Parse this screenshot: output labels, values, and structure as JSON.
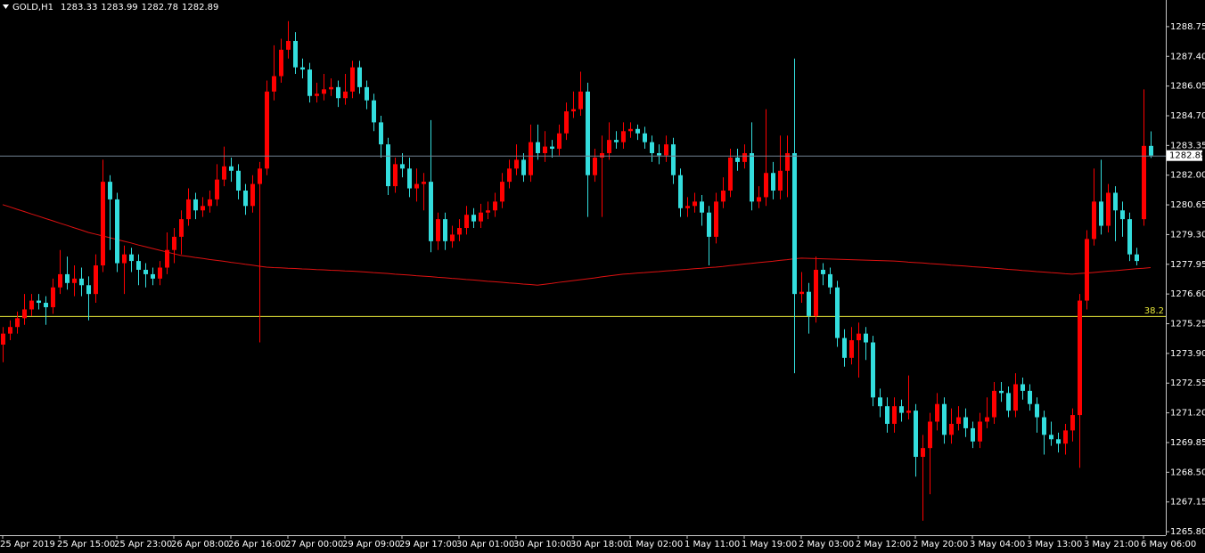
{
  "chart_data": {
    "type": "candlestick",
    "symbol": "GOLD,H1",
    "up_color": "#ff0000",
    "down_color": "#33dddd",
    "categories": [
      "25 Apr 2019",
      null,
      null,
      null,
      null,
      null,
      null,
      null,
      "25 Apr 15:00",
      null,
      null,
      null,
      null,
      null,
      null,
      null,
      "25 Apr 23:00",
      null,
      null,
      null,
      null,
      null,
      null,
      null,
      "26 Apr 08:00",
      null,
      null,
      null,
      null,
      null,
      null,
      null,
      "26 Apr 16:00",
      null,
      null,
      null,
      null,
      null,
      null,
      null,
      "27 Apr 00:00",
      null,
      null,
      null,
      null,
      null,
      null,
      null,
      "29 Apr 09:00",
      null,
      null,
      null,
      null,
      null,
      null,
      null,
      "29 Apr 17:00",
      null,
      null,
      null,
      null,
      null,
      null,
      null,
      "30 Apr 01:00",
      null,
      null,
      null,
      null,
      null,
      null,
      null,
      "30 Apr 10:00",
      null,
      null,
      null,
      null,
      null,
      null,
      null,
      "30 Apr 18:00",
      null,
      null,
      null,
      null,
      null,
      null,
      null,
      "1 May 02:00",
      null,
      null,
      null,
      null,
      null,
      null,
      null,
      "1 May 11:00",
      null,
      null,
      null,
      null,
      null,
      null,
      null,
      "1 May 19:00",
      null,
      null,
      null,
      null,
      null,
      null,
      null,
      "2 May 03:00",
      null,
      null,
      null,
      null,
      null,
      null,
      null,
      "2 May 12:00",
      null,
      null,
      null,
      null,
      null,
      null,
      null,
      "2 May 20:00",
      null,
      null,
      null,
      null,
      null,
      null,
      null,
      "3 May 04:00",
      null,
      null,
      null,
      null,
      null,
      null,
      null,
      "3 May 13:00",
      null,
      null,
      null,
      null,
      null,
      null,
      null,
      "3 May 21:00",
      null,
      null,
      null,
      null,
      null,
      null,
      null,
      "6 May 06:00",
      null
    ],
    "open": [
      1274.3,
      1274.8,
      1275.1,
      1275.5,
      1275.9,
      1276.3,
      1276.2,
      1276.0,
      1276.9,
      1277.5,
      1277.1,
      1277.3,
      1277.0,
      1276.6,
      1277.9,
      1281.7,
      1280.9,
      1278.0,
      1278.4,
      1278.1,
      1277.7,
      1277.5,
      1277.3,
      1277.8,
      1278.6,
      1279.2,
      1280.0,
      1280.9,
      1280.4,
      1280.6,
      1280.9,
      1281.8,
      1282.4,
      1282.2,
      1281.3,
      1280.6,
      1281.6,
      1282.3,
      1285.8,
      1286.5,
      1287.7,
      1288.1,
      1286.9,
      1286.8,
      1285.6,
      1285.7,
      1285.9,
      1286.0,
      1285.5,
      1285.8,
      1286.9,
      1286.0,
      1285.4,
      1284.4,
      1283.4,
      1281.5,
      1282.5,
      1282.3,
      1281.4,
      1281.6,
      1281.7,
      1279.0,
      1280.0,
      1279.0,
      1279.3,
      1279.6,
      1280.2,
      1279.9,
      1280.3,
      1280.4,
      1280.8,
      1281.7,
      1282.3,
      1282.7,
      1282.0,
      1283.5,
      1283.0,
      1283.3,
      1283.2,
      1283.9,
      1284.9,
      1285.0,
      1285.8,
      1282.0,
      1282.8,
      1283.0,
      1283.6,
      1283.5,
      1284.0,
      1284.1,
      1283.9,
      1283.5,
      1283.0,
      1282.9,
      1283.4,
      1282.0,
      1280.5,
      1280.6,
      1280.8,
      1280.3,
      1279.2,
      1280.8,
      1281.3,
      1282.8,
      1282.6,
      1283.0,
      1280.8,
      1281.0,
      1282.1,
      1281.3,
      1282.2,
      1283.0,
      1276.6,
      1276.7,
      1275.6,
      1277.7,
      1277.5,
      1276.9,
      1274.6,
      1273.7,
      1274.5,
      1274.8,
      1274.4,
      1271.9,
      1271.5,
      1270.7,
      1271.5,
      1271.2,
      1271.3,
      1269.2,
      1269.6,
      1270.8,
      1271.6,
      1270.2,
      1270.7,
      1271.0,
      1270.5,
      1269.9,
      1270.8,
      1271.0,
      1272.2,
      1272.1,
      1271.3,
      1272.5,
      1272.2,
      1271.6,
      1271.0,
      1270.2,
      1270.0,
      1269.8,
      1270.4,
      1271.1,
      1276.3,
      1279.1,
      1280.8,
      1279.7,
      1281.2,
      1280.4,
      1280.0,
      1278.4,
      1280.0,
      1283.33
    ],
    "high": [
      1275.1,
      1275.4,
      1275.8,
      1276.6,
      1276.6,
      1276.6,
      1276.5,
      1277.3,
      1278.6,
      1278.3,
      1277.9,
      1277.8,
      1277.4,
      1278.4,
      1282.7,
      1282.0,
      1281.2,
      1278.8,
      1278.7,
      1278.4,
      1278.0,
      1277.8,
      1278.1,
      1279.4,
      1279.6,
      1280.4,
      1281.4,
      1281.2,
      1281.0,
      1281.3,
      1282.5,
      1283.3,
      1282.8,
      1282.5,
      1281.6,
      1282.0,
      1282.6,
      1286.3,
      1287.9,
      1288.2,
      1289.0,
      1288.5,
      1287.3,
      1287.1,
      1286.2,
      1286.6,
      1286.4,
      1286.3,
      1286.6,
      1287.2,
      1287.2,
      1286.3,
      1285.7,
      1284.7,
      1283.7,
      1282.8,
      1283.0,
      1282.8,
      1282.3,
      1282.1,
      1284.5,
      1280.3,
      1280.3,
      1279.7,
      1280.0,
      1280.6,
      1280.5,
      1280.7,
      1280.8,
      1281.2,
      1282.1,
      1282.7,
      1283.4,
      1283.0,
      1284.3,
      1284.3,
      1284.0,
      1283.6,
      1284.3,
      1285.3,
      1285.8,
      1286.7,
      1286.2,
      1283.2,
      1283.8,
      1284.4,
      1284.0,
      1284.4,
      1284.4,
      1284.3,
      1284.2,
      1283.8,
      1283.4,
      1283.8,
      1283.7,
      1282.3,
      1281.0,
      1281.2,
      1281.1,
      1280.6,
      1281.2,
      1281.9,
      1283.2,
      1283.2,
      1283.4,
      1284.4,
      1281.5,
      1285.0,
      1282.6,
      1283.8,
      1283.8,
      1287.3,
      1277.6,
      1277.1,
      1278.3,
      1278.0,
      1277.8,
      1277.2,
      1275.0,
      1275.1,
      1275.3,
      1275.1,
      1274.7,
      1272.3,
      1271.9,
      1271.9,
      1271.8,
      1272.9,
      1271.6,
      1270.2,
      1271.2,
      1272.1,
      1271.9,
      1271.4,
      1271.5,
      1271.4,
      1270.8,
      1271.2,
      1271.9,
      1272.6,
      1272.6,
      1272.4,
      1273.0,
      1272.8,
      1272.5,
      1271.9,
      1271.3,
      1270.8,
      1270.3,
      1270.7,
      1271.4,
      1276.6,
      1279.5,
      1282.3,
      1282.7,
      1281.6,
      1281.5,
      1280.8,
      1280.3,
      1278.7,
      1285.9,
      1283.99
    ],
    "low": [
      1273.5,
      1274.5,
      1274.8,
      1275.2,
      1275.6,
      1275.9,
      1275.2,
      1275.7,
      1276.6,
      1276.8,
      1276.5,
      1276.5,
      1275.4,
      1276.2,
      1277.6,
      1278.6,
      1277.6,
      1276.6,
      1277.6,
      1277.0,
      1276.9,
      1277.0,
      1277.0,
      1277.5,
      1278.0,
      1278.4,
      1279.7,
      1280.0,
      1280.1,
      1280.3,
      1280.6,
      1281.5,
      1281.7,
      1280.9,
      1280.2,
      1280.3,
      1274.4,
      1282.0,
      1285.4,
      1286.2,
      1287.3,
      1286.6,
      1286.4,
      1285.3,
      1285.3,
      1285.4,
      1285.6,
      1285.1,
      1285.2,
      1285.5,
      1285.7,
      1285.0,
      1284.0,
      1282.8,
      1281.1,
      1281.2,
      1281.9,
      1281.0,
      1280.8,
      1280.4,
      1278.5,
      1278.6,
      1278.6,
      1278.7,
      1279.0,
      1279.3,
      1279.6,
      1279.6,
      1280.0,
      1280.1,
      1280.5,
      1281.4,
      1282.0,
      1281.7,
      1281.7,
      1282.7,
      1282.6,
      1282.8,
      1282.9,
      1283.6,
      1284.6,
      1284.7,
      1280.1,
      1281.7,
      1280.1,
      1282.7,
      1283.2,
      1283.2,
      1283.7,
      1283.6,
      1283.2,
      1282.6,
      1282.5,
      1282.6,
      1281.6,
      1280.1,
      1280.1,
      1280.3,
      1279.7,
      1277.9,
      1278.9,
      1280.5,
      1281.0,
      1282.2,
      1282.3,
      1280.4,
      1280.5,
      1280.6,
      1280.9,
      1280.9,
      1281.0,
      1273.0,
      1276.2,
      1274.8,
      1275.3,
      1277.0,
      1276.6,
      1274.2,
      1273.3,
      1273.4,
      1272.8,
      1273.6,
      1271.5,
      1271.0,
      1270.3,
      1270.3,
      1270.8,
      1270.9,
      1268.3,
      1266.3,
      1267.5,
      1270.4,
      1269.8,
      1269.8,
      1270.4,
      1270.1,
      1269.6,
      1269.6,
      1270.5,
      1270.7,
      1271.7,
      1271.0,
      1271.0,
      1271.8,
      1271.3,
      1270.3,
      1269.3,
      1269.7,
      1269.4,
      1269.3,
      1269.9,
      1268.7,
      1275.9,
      1278.8,
      1279.3,
      1279.4,
      1279.0,
      1279.2,
      1278.1,
      1277.9,
      1279.7,
      1282.78
    ],
    "close": [
      1274.8,
      1275.1,
      1275.5,
      1275.9,
      1276.3,
      1276.2,
      1276.0,
      1276.9,
      1277.5,
      1277.1,
      1277.3,
      1277.0,
      1276.6,
      1277.9,
      1281.7,
      1280.9,
      1278.0,
      1278.4,
      1278.1,
      1277.7,
      1277.5,
      1277.3,
      1277.8,
      1278.6,
      1279.2,
      1280.0,
      1280.9,
      1280.4,
      1280.6,
      1280.9,
      1281.8,
      1282.4,
      1282.2,
      1281.3,
      1280.6,
      1281.6,
      1282.3,
      1285.8,
      1286.5,
      1287.7,
      1288.1,
      1286.9,
      1286.8,
      1285.6,
      1285.7,
      1285.9,
      1286.0,
      1285.5,
      1285.8,
      1286.9,
      1286.0,
      1285.4,
      1284.4,
      1283.4,
      1281.5,
      1282.5,
      1282.3,
      1281.4,
      1281.6,
      1281.7,
      1279.0,
      1280.0,
      1279.0,
      1279.3,
      1279.6,
      1280.2,
      1279.9,
      1280.3,
      1280.4,
      1280.8,
      1281.7,
      1282.3,
      1282.7,
      1282.0,
      1283.5,
      1283.0,
      1283.3,
      1283.2,
      1283.9,
      1284.9,
      1285.0,
      1285.8,
      1282.0,
      1282.8,
      1283.0,
      1283.6,
      1283.5,
      1284.0,
      1284.1,
      1283.9,
      1283.5,
      1283.0,
      1282.9,
      1283.4,
      1282.0,
      1280.5,
      1280.6,
      1280.8,
      1280.3,
      1279.2,
      1280.8,
      1281.3,
      1282.8,
      1282.6,
      1283.0,
      1280.8,
      1281.0,
      1282.1,
      1281.3,
      1282.2,
      1283.0,
      1276.6,
      1276.7,
      1275.6,
      1277.7,
      1277.5,
      1276.9,
      1274.6,
      1273.7,
      1274.5,
      1274.8,
      1274.4,
      1271.9,
      1271.5,
      1270.7,
      1271.5,
      1271.2,
      1271.3,
      1269.2,
      1269.6,
      1270.8,
      1271.6,
      1270.2,
      1270.7,
      1271.0,
      1270.5,
      1269.9,
      1270.8,
      1271.0,
      1272.2,
      1272.1,
      1271.3,
      1272.5,
      1272.2,
      1271.6,
      1271.0,
      1270.2,
      1270.0,
      1269.8,
      1270.4,
      1271.1,
      1276.3,
      1279.1,
      1280.8,
      1279.7,
      1281.2,
      1280.4,
      1280.0,
      1278.4,
      1278.1,
      1283.33,
      1282.89
    ],
    "ma": {
      "color": "#dd1111",
      "values": [
        1280.66,
        1280.56,
        1280.45,
        1280.35,
        1280.24,
        1280.14,
        1280.03,
        1279.93,
        1279.82,
        1279.72,
        1279.61,
        1279.51,
        1279.4,
        1279.32,
        1279.24,
        1279.16,
        1279.08,
        1279.0,
        1278.92,
        1278.83,
        1278.75,
        1278.67,
        1278.59,
        1278.51,
        1278.43,
        1278.35,
        1278.31,
        1278.26,
        1278.22,
        1278.17,
        1278.13,
        1278.09,
        1278.04,
        1278.0,
        1277.95,
        1277.91,
        1277.86,
        1277.82,
        1277.8,
        1277.79,
        1277.77,
        1277.76,
        1277.74,
        1277.73,
        1277.71,
        1277.7,
        1277.68,
        1277.67,
        1277.65,
        1277.64,
        1277.62,
        1277.6,
        1277.57,
        1277.55,
        1277.53,
        1277.5,
        1277.48,
        1277.46,
        1277.43,
        1277.41,
        1277.39,
        1277.36,
        1277.34,
        1277.31,
        1277.29,
        1277.26,
        1277.24,
        1277.21,
        1277.18,
        1277.16,
        1277.13,
        1277.1,
        1277.08,
        1277.05,
        1277.03,
        1277.0,
        1277.04,
        1277.08,
        1277.13,
        1277.17,
        1277.21,
        1277.25,
        1277.29,
        1277.33,
        1277.38,
        1277.42,
        1277.46,
        1277.5,
        1277.52,
        1277.55,
        1277.57,
        1277.6,
        1277.62,
        1277.65,
        1277.67,
        1277.7,
        1277.72,
        1277.75,
        1277.77,
        1277.8,
        1277.82,
        1277.85,
        1277.89,
        1277.92,
        1277.96,
        1277.99,
        1278.03,
        1278.06,
        1278.09,
        1278.13,
        1278.16,
        1278.2,
        1278.23,
        1278.22,
        1278.21,
        1278.2,
        1278.19,
        1278.18,
        1278.17,
        1278.16,
        1278.15,
        1278.14,
        1278.13,
        1278.12,
        1278.11,
        1278.1,
        1278.08,
        1278.05,
        1278.03,
        1278.01,
        1277.98,
        1277.96,
        1277.94,
        1277.91,
        1277.89,
        1277.87,
        1277.84,
        1277.82,
        1277.8,
        1277.77,
        1277.75,
        1277.72,
        1277.7,
        1277.67,
        1277.65,
        1277.62,
        1277.6,
        1277.57,
        1277.55,
        1277.52,
        1277.5,
        1277.53,
        1277.55,
        1277.58,
        1277.61,
        1277.64,
        1277.66,
        1277.69,
        1277.72,
        1277.75,
        1277.77,
        1277.8
      ]
    },
    "bid_line_color": "#708090",
    "fibo_level": {
      "label": "38.2",
      "value": 1275.6,
      "color": "#e8e83a"
    },
    "ylim": [
      1265.64,
      1289.96
    ],
    "yticks": [
      1288.75,
      {
        "value": 1287.4,
        "label": "1287.40"
      },
      1286.05,
      {
        "value": 1284.7,
        "label": "1284.70"
      },
      1283.35,
      {
        "value": 1282.0,
        "label": "1282.00"
      },
      1280.65,
      {
        "value": 1279.3,
        "label": "1279.30"
      },
      1277.95,
      {
        "value": 1276.6,
        "label": "1276.60"
      },
      1275.25,
      {
        "value": 1273.9,
        "label": "1273.90"
      },
      1272.55,
      {
        "value": 1271.2,
        "label": "1271.20"
      },
      1269.85,
      {
        "value": 1268.5,
        "label": "1268.50"
      },
      1267.15,
      {
        "value": 1265.8,
        "label": "1265.80"
      }
    ]
  }
}
